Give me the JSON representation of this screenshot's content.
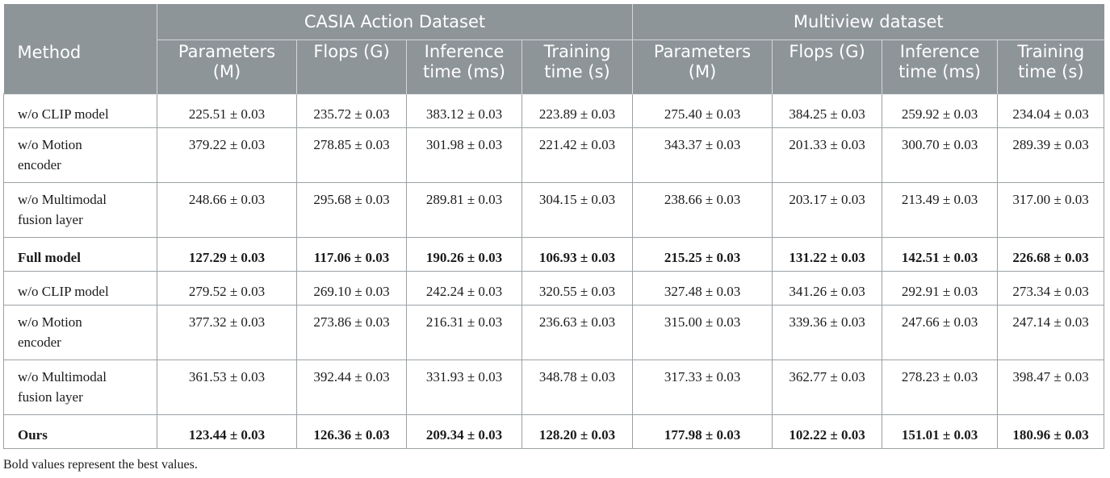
{
  "header": {
    "method": "Method",
    "groups": [
      "CASIA Action Dataset",
      "Multiview dataset"
    ],
    "columns": [
      [
        "Parameters",
        "(M)"
      ],
      [
        "Flops (G)",
        ""
      ],
      [
        "Inference",
        "time (ms)"
      ],
      [
        "Training",
        "time (s)"
      ],
      [
        "Parameters",
        "(M)"
      ],
      [
        "Flops (G)",
        ""
      ],
      [
        "Inference",
        "time (ms)"
      ],
      [
        "Training",
        "time (s)"
      ]
    ]
  },
  "rows": [
    {
      "method": [
        "w/o CLIP model",
        ""
      ],
      "bold": false,
      "values": [
        "225.51 ± 0.03",
        "235.72 ± 0.03",
        "383.12 ± 0.03",
        "223.89 ± 0.03",
        "275.40 ± 0.03",
        "384.25 ± 0.03",
        "259.92 ± 0.03",
        "234.04 ± 0.03"
      ]
    },
    {
      "method": [
        "w/o Motion",
        "encoder"
      ],
      "bold": false,
      "values": [
        "379.22 ± 0.03",
        "278.85 ± 0.03",
        "301.98 ± 0.03",
        "221.42 ± 0.03",
        "343.37 ± 0.03",
        "201.33 ± 0.03",
        "300.70 ± 0.03",
        "289.39 ± 0.03"
      ]
    },
    {
      "method": [
        "w/o Multimodal",
        "fusion layer"
      ],
      "bold": false,
      "values": [
        "248.66 ± 0.03",
        "295.68 ± 0.03",
        "289.81 ± 0.03",
        "304.15 ± 0.03",
        "238.66 ± 0.03",
        "203.17 ± 0.03",
        "213.49 ± 0.03",
        "317.00 ± 0.03"
      ]
    },
    {
      "method": [
        "Full model",
        ""
      ],
      "bold": true,
      "values": [
        "127.29 ± 0.03",
        "117.06 ± 0.03",
        "190.26 ± 0.03",
        "106.93 ± 0.03",
        "215.25 ± 0.03",
        "131.22 ± 0.03",
        "142.51 ± 0.03",
        "226.68 ± 0.03"
      ]
    },
    {
      "method": [
        "w/o CLIP model",
        ""
      ],
      "bold": false,
      "values": [
        "279.52 ± 0.03",
        "269.10 ± 0.03",
        "242.24 ± 0.03",
        "320.55 ± 0.03",
        "327.48 ± 0.03",
        "341.26 ± 0.03",
        "292.91 ± 0.03",
        "273.34 ± 0.03"
      ]
    },
    {
      "method": [
        "w/o Motion",
        "encoder"
      ],
      "bold": false,
      "values": [
        "377.32 ± 0.03",
        "273.86 ± 0.03",
        "216.31 ± 0.03",
        "236.63 ± 0.03",
        "315.00 ± 0.03",
        "339.36 ± 0.03",
        "247.66 ± 0.03",
        "247.14 ± 0.03"
      ]
    },
    {
      "method": [
        "w/o Multimodal",
        "fusion layer"
      ],
      "bold": false,
      "values": [
        "361.53 ± 0.03",
        "392.44 ± 0.03",
        "331.93 ± 0.03",
        "348.78 ± 0.03",
        "317.33 ± 0.03",
        "362.77 ± 0.03",
        "278.23 ± 0.03",
        "398.47 ± 0.03"
      ]
    },
    {
      "method": [
        "Ours",
        ""
      ],
      "bold": true,
      "values": [
        "123.44 ± 0.03",
        "126.36 ± 0.03",
        "209.34 ± 0.03",
        "128.20 ± 0.03",
        "177.98 ± 0.03",
        "102.22 ± 0.03",
        "151.01 ± 0.03",
        "180.96 ± 0.03"
      ]
    }
  ],
  "footnote": "Bold values represent the best values."
}
